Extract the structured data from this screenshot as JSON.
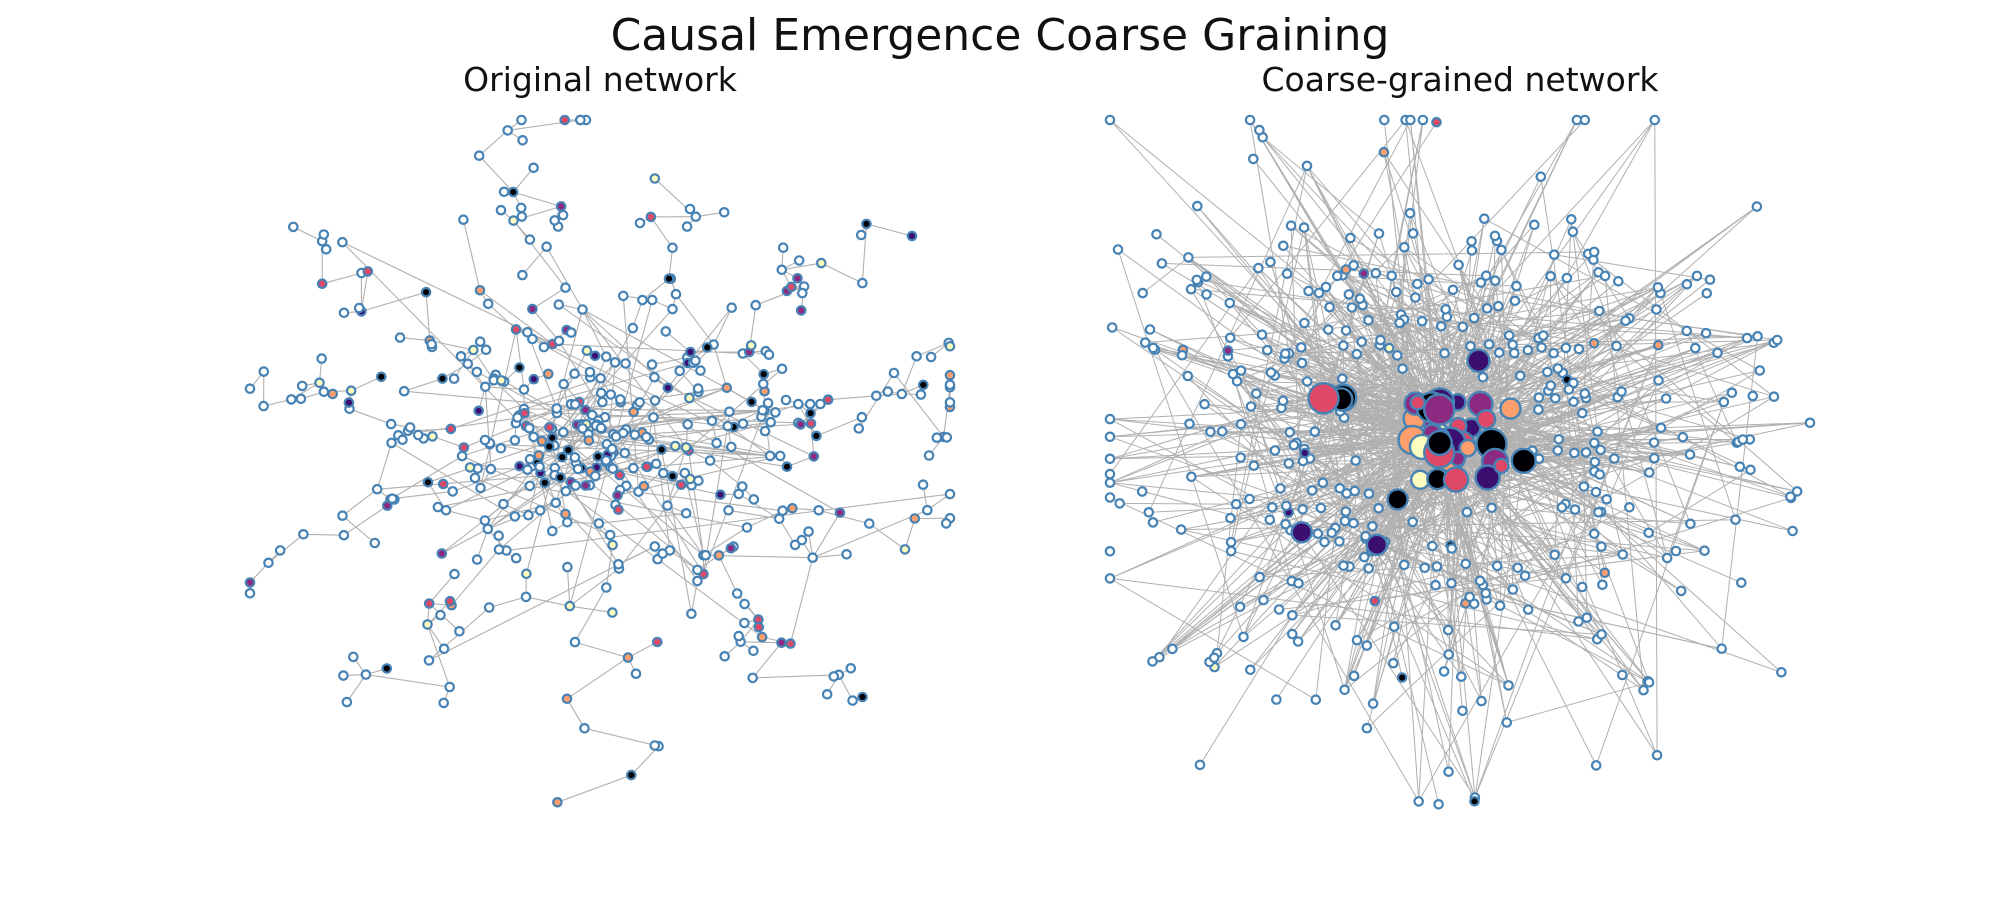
{
  "figure": {
    "title": "Causal Emergence Coarse Graining",
    "panels": [
      {
        "title": "Original network"
      },
      {
        "title": "Coarse-grained network"
      }
    ]
  },
  "colors": {
    "background": "#ffffff",
    "edge": "#b0b0b0",
    "node_edge": "#4682b4",
    "node_fill_default": "#ffffff",
    "node_palette": [
      "#000004",
      "#3b0f70",
      "#8c2981",
      "#de4968",
      "#fe9f6d",
      "#fcfdbf"
    ]
  },
  "chart_data": [
    {
      "type": "network",
      "title": "Original network",
      "layout": "force-directed, tree-like sparse graph with radiating branches",
      "node_style": "small hollow white nodes with steel-blue outline; some filled with magma palette colors",
      "edge_style": "thin light gray"
    },
    {
      "type": "network",
      "title": "Coarse-grained network",
      "layout": "force-directed, dense core with many crossing edges",
      "node_style": "small hollow nodes at periphery; large filled macro-nodes in magma palette at the core",
      "edge_style": "thin light gray, dense"
    }
  ]
}
